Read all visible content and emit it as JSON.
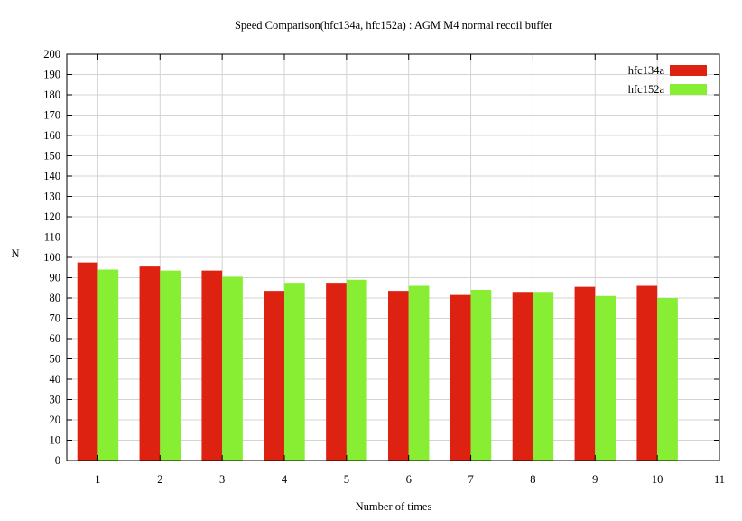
{
  "chart_data": {
    "type": "bar",
    "title": "Speed Comparison(hfc134a, hfc152a) : AGM M4 normal recoil buffer",
    "xlabel": "Number of times",
    "ylabel": "N",
    "xlim": [
      0.5,
      11
    ],
    "ylim": [
      0,
      200
    ],
    "x_ticks": [
      1,
      2,
      3,
      4,
      5,
      6,
      7,
      8,
      9,
      10,
      11
    ],
    "y_ticks": [
      0,
      10,
      20,
      30,
      40,
      50,
      60,
      70,
      80,
      90,
      100,
      110,
      120,
      130,
      140,
      150,
      160,
      170,
      180,
      190,
      200
    ],
    "grid": true,
    "legend_position": "top-right",
    "x": [
      1,
      2,
      3,
      4,
      5,
      6,
      7,
      8,
      9,
      10
    ],
    "series": [
      {
        "name": "hfc134a",
        "color": "#dd2211",
        "values": [
          97.5,
          95.5,
          93.5,
          83.5,
          87.5,
          83.5,
          81.5,
          83,
          85.5,
          86
        ]
      },
      {
        "name": "hfc152a",
        "color": "#88ee33",
        "values": [
          94,
          93.5,
          90.5,
          87.5,
          89,
          86,
          84,
          83,
          81,
          80
        ]
      }
    ]
  }
}
